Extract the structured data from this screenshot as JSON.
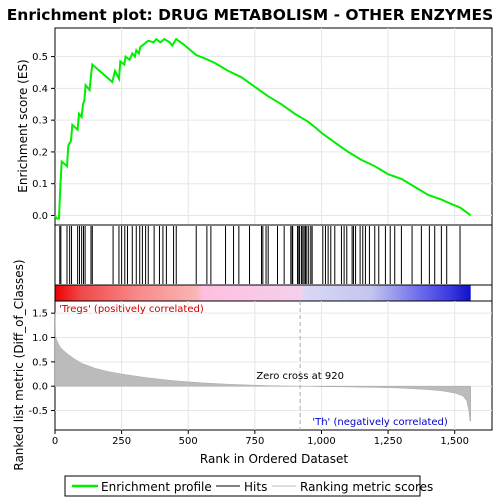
{
  "chart_data": {
    "type": "line",
    "title": "Enrichment plot: DRUG METABOLISM - OTHER ENZYMES",
    "es_panel": {
      "ylabel": "Enrichment score (ES)",
      "ylim": [
        -0.03,
        0.59
      ],
      "yticks": [
        "0.0",
        "0.1",
        "0.2",
        "0.3",
        "0.4",
        "0.5"
      ],
      "ytick_values": [
        0.0,
        0.1,
        0.2,
        0.3,
        0.4,
        0.5
      ],
      "series_name": "Enrichment profile",
      "color": "#00ee00",
      "points": [
        [
          0,
          0
        ],
        [
          3,
          -0.005
        ],
        [
          8,
          -0.01
        ],
        [
          15,
          -0.01
        ],
        [
          20,
          0.09
        ],
        [
          25,
          0.17
        ],
        [
          45,
          0.155
        ],
        [
          50,
          0.22
        ],
        [
          60,
          0.235
        ],
        [
          65,
          0.285
        ],
        [
          85,
          0.27
        ],
        [
          90,
          0.32
        ],
        [
          100,
          0.31
        ],
        [
          105,
          0.35
        ],
        [
          110,
          0.36
        ],
        [
          115,
          0.41
        ],
        [
          130,
          0.395
        ],
        [
          135,
          0.44
        ],
        [
          140,
          0.475
        ],
        [
          215,
          0.42
        ],
        [
          225,
          0.455
        ],
        [
          240,
          0.43
        ],
        [
          245,
          0.485
        ],
        [
          260,
          0.475
        ],
        [
          265,
          0.5
        ],
        [
          280,
          0.49
        ],
        [
          290,
          0.51
        ],
        [
          300,
          0.5
        ],
        [
          305,
          0.52
        ],
        [
          315,
          0.51
        ],
        [
          320,
          0.53
        ],
        [
          335,
          0.54
        ],
        [
          350,
          0.55
        ],
        [
          370,
          0.545
        ],
        [
          380,
          0.555
        ],
        [
          395,
          0.545
        ],
        [
          410,
          0.555
        ],
        [
          430,
          0.545
        ],
        [
          440,
          0.535
        ],
        [
          455,
          0.555
        ],
        [
          480,
          0.54
        ],
        [
          530,
          0.505
        ],
        [
          560,
          0.495
        ],
        [
          600,
          0.48
        ],
        [
          650,
          0.455
        ],
        [
          700,
          0.435
        ],
        [
          750,
          0.405
        ],
        [
          800,
          0.375
        ],
        [
          850,
          0.35
        ],
        [
          900,
          0.32
        ],
        [
          950,
          0.295
        ],
        [
          980,
          0.275
        ],
        [
          1000,
          0.26
        ],
        [
          1050,
          0.23
        ],
        [
          1100,
          0.2
        ],
        [
          1150,
          0.175
        ],
        [
          1200,
          0.155
        ],
        [
          1250,
          0.13
        ],
        [
          1300,
          0.115
        ],
        [
          1350,
          0.09
        ],
        [
          1400,
          0.065
        ],
        [
          1450,
          0.05
        ],
        [
          1490,
          0.035
        ],
        [
          1520,
          0.025
        ],
        [
          1545,
          0.01
        ],
        [
          1560,
          0.0
        ]
      ]
    },
    "hits": {
      "ranks": [
        18,
        22,
        45,
        55,
        62,
        85,
        92,
        100,
        107,
        113,
        135,
        140,
        218,
        240,
        250,
        262,
        272,
        290,
        305,
        318,
        328,
        340,
        350,
        372,
        392,
        405,
        418,
        445,
        455,
        530,
        570,
        585,
        640,
        670,
        690,
        730,
        775,
        780,
        792,
        800,
        835,
        860,
        885,
        890,
        892,
        910,
        915,
        918,
        925,
        930,
        935,
        940,
        945,
        952,
        960,
        965,
        1005,
        1015,
        1025,
        1035,
        1050,
        1075,
        1085,
        1095,
        1115,
        1120,
        1128,
        1145,
        1155,
        1165,
        1180,
        1200,
        1215,
        1240,
        1258,
        1275,
        1300,
        1340,
        1375,
        1405,
        1425,
        1450,
        1470,
        1520
      ]
    },
    "ranked_bar": {
      "xmax": 1560,
      "neg_start": 920,
      "label_pos": "'Tregs' (positively correlated)",
      "label_neg": "'Th' (negatively correlated)",
      "pos_label_color": "#cc0000",
      "neg_label_color": "#0000cc"
    },
    "metric_panel": {
      "ylabel": "Ranked list metric (Diff_of_Classes)",
      "ylim": [
        -0.9,
        1.75
      ],
      "yticks": [
        "-0.5",
        "0.0",
        "0.5",
        "1.0",
        "1.5"
      ],
      "ytick_values": [
        -0.5,
        0.0,
        0.5,
        1.0,
        1.5
      ],
      "metric_points": [
        [
          0,
          1.5
        ],
        [
          2,
          1.05
        ],
        [
          5,
          0.97
        ],
        [
          10,
          0.9
        ],
        [
          20,
          0.8
        ],
        [
          35,
          0.72
        ],
        [
          50,
          0.65
        ],
        [
          70,
          0.57
        ],
        [
          100,
          0.47
        ],
        [
          150,
          0.37
        ],
        [
          200,
          0.3
        ],
        [
          250,
          0.25
        ],
        [
          300,
          0.21
        ],
        [
          350,
          0.17
        ],
        [
          400,
          0.14
        ],
        [
          450,
          0.11
        ],
        [
          500,
          0.09
        ],
        [
          550,
          0.07
        ],
        [
          600,
          0.055
        ],
        [
          650,
          0.04
        ],
        [
          700,
          0.03
        ],
        [
          750,
          0.02
        ],
        [
          800,
          0.012
        ],
        [
          850,
          0.006
        ],
        [
          900,
          0.002
        ],
        [
          920,
          0.0
        ],
        [
          960,
          -0.003
        ],
        [
          1000,
          -0.008
        ],
        [
          1100,
          -0.015
        ],
        [
          1200,
          -0.025
        ],
        [
          1300,
          -0.04
        ],
        [
          1400,
          -0.07
        ],
        [
          1450,
          -0.095
        ],
        [
          1500,
          -0.14
        ],
        [
          1530,
          -0.2
        ],
        [
          1545,
          -0.3
        ],
        [
          1553,
          -0.5
        ],
        [
          1558,
          -0.72
        ],
        [
          1560,
          -0.72
        ]
      ],
      "zero_cross_label": "Zero cross at 920",
      "zero_cross": 920
    },
    "x_axis": {
      "xlabel": "Rank in Ordered Dataset",
      "xlim": [
        0,
        1640
      ],
      "xticks": [
        "0",
        "250",
        "500",
        "750",
        "1,000",
        "1,250",
        "1,500"
      ],
      "xtick_values": [
        0,
        250,
        500,
        750,
        1000,
        1250,
        1500
      ]
    },
    "legend": {
      "placement": "bottom",
      "items": [
        {
          "label": "Enrichment profile",
          "color": "#00ee00"
        },
        {
          "label": "Hits",
          "color": "#000000"
        },
        {
          "label": "Ranking metric scores",
          "color": "#bbbbbb"
        }
      ]
    }
  }
}
